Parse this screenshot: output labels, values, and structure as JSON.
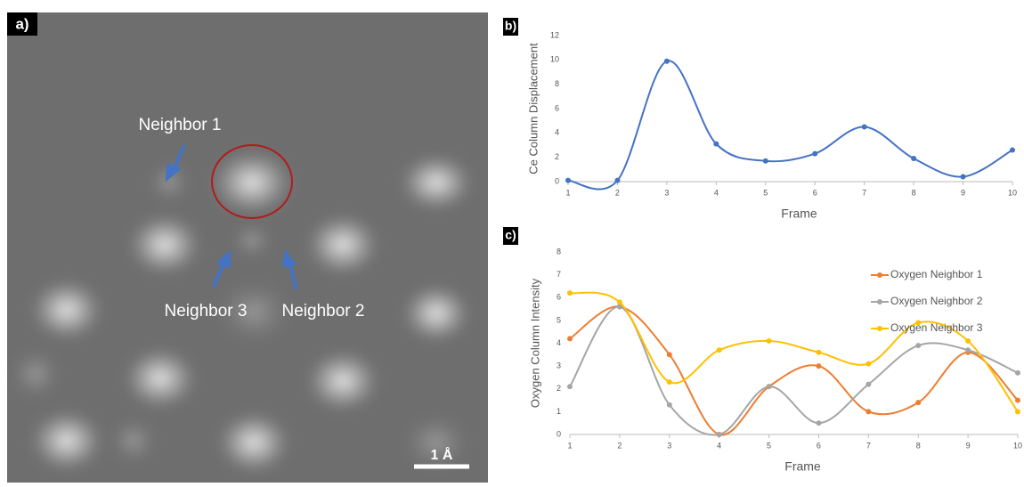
{
  "image": {
    "panel_label": "a)",
    "labels": [
      "Neighbor 1",
      "Neighbor 3",
      "Neighbor 2"
    ],
    "scale_bar": "1 Å"
  },
  "chart_data": [
    {
      "type": "line",
      "panel_label": "b)",
      "y_label": "Ce Column Displacement",
      "x_label": "Frame",
      "x": [
        1,
        2,
        3,
        4,
        5,
        6,
        7,
        8,
        9,
        10
      ],
      "xlim": [
        1,
        10
      ],
      "xticks": [
        1,
        2,
        3,
        4,
        5,
        6,
        7,
        8,
        9,
        10
      ],
      "ylim": [
        0,
        12
      ],
      "yticks": [
        0,
        2,
        4,
        6,
        8,
        10,
        12
      ],
      "smooth": true,
      "series": [
        {
          "name": "Ce Column Displacement",
          "color": "#4472c4",
          "values": [
            0.1,
            0.1,
            9.9,
            3.1,
            1.7,
            2.3,
            4.5,
            1.9,
            0.4,
            2.6
          ]
        }
      ]
    },
    {
      "type": "line",
      "panel_label": "c)",
      "y_label": "Oxygen Column Intensity",
      "x_label": "Frame",
      "x": [
        1,
        2,
        3,
        4,
        5,
        6,
        7,
        8,
        9,
        10
      ],
      "xlim": [
        1,
        10
      ],
      "xticks": [
        1,
        2,
        3,
        4,
        5,
        6,
        7,
        8,
        9,
        10
      ],
      "ylim": [
        0,
        8
      ],
      "yticks": [
        0,
        1,
        2,
        3,
        4,
        5,
        6,
        7,
        8
      ],
      "smooth": true,
      "legend": "right",
      "series": [
        {
          "name": "Oxygen Neighbor 1",
          "color": "#ed7d31",
          "values": [
            4.2,
            5.6,
            3.5,
            0,
            2.1,
            3.0,
            1.0,
            1.4,
            3.6,
            1.5
          ]
        },
        {
          "name": "Oxygen Neighbor 2",
          "color": "#a5a5a5",
          "values": [
            2.1,
            5.6,
            1.3,
            0,
            2.1,
            0.5,
            2.2,
            3.9,
            3.7,
            2.7
          ]
        },
        {
          "name": "Oxygen Neighbor 3",
          "color": "#ffc000",
          "values": [
            6.2,
            5.8,
            2.3,
            3.7,
            4.1,
            3.6,
            3.1,
            4.9,
            4.1,
            1.0
          ]
        }
      ]
    }
  ]
}
